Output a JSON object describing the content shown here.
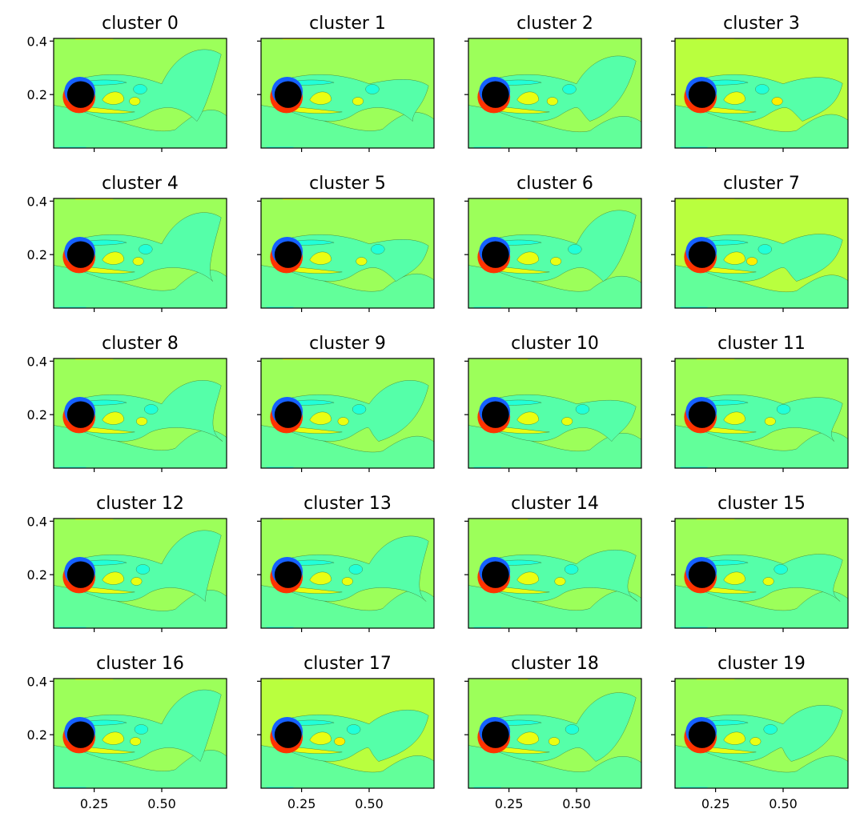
{
  "chart_data": {
    "type": "contourf",
    "layout": {
      "rows": 5,
      "cols": 4
    },
    "shared_x_ticks": [
      0.25,
      0.5
    ],
    "shared_x_tick_labels": [
      "0.25",
      "0.50"
    ],
    "shared_y_ticks": [
      0.2,
      0.4
    ],
    "shared_y_tick_labels": [
      "0.2",
      "0.4"
    ],
    "xlim": [
      0.1,
      0.74
    ],
    "ylim": [
      0.0,
      0.41
    ],
    "cylinder": {
      "cx": 0.2,
      "cy": 0.2,
      "r": 0.05,
      "color": "#000000"
    },
    "colormap": "jet",
    "colors": {
      "freestream": "#9cff5a",
      "freestream_warm": "#b9ff3e",
      "lower_field": "#62ff9a",
      "wake_mid": "#55ffa9",
      "vortex_cyan": "#22ffd9",
      "vortex_yellow": "#eaff12",
      "vortex_core_yellow": "#ffee00",
      "hot_edge": "#ff3300",
      "cold_edge": "#1560ff"
    },
    "panels": [
      {
        "title": "cluster 0",
        "warm": false,
        "phase": 0.0
      },
      {
        "title": "cluster 1",
        "warm": false,
        "phase": 0.45
      },
      {
        "title": "cluster 2",
        "warm": false,
        "phase": 0.85
      },
      {
        "title": "cluster 3",
        "warm": true,
        "phase": 0.6
      },
      {
        "title": "cluster 4",
        "warm": false,
        "phase": 0.1
      },
      {
        "title": "cluster 5",
        "warm": false,
        "phase": 0.55
      },
      {
        "title": "cluster 6",
        "warm": false,
        "phase": 0.95
      },
      {
        "title": "cluster 7",
        "warm": true,
        "phase": 0.65
      },
      {
        "title": "cluster 8",
        "warm": false,
        "phase": 0.2
      },
      {
        "title": "cluster 9",
        "warm": false,
        "phase": 0.8
      },
      {
        "title": "cluster 10",
        "warm": false,
        "phase": 0.5
      },
      {
        "title": "cluster 11",
        "warm": false,
        "phase": 0.4
      },
      {
        "title": "cluster 12",
        "warm": false,
        "phase": 0.05
      },
      {
        "title": "cluster 13",
        "warm": false,
        "phase": 0.15
      },
      {
        "title": "cluster 14",
        "warm": false,
        "phase": 0.3
      },
      {
        "title": "cluster 15",
        "warm": false,
        "phase": 0.35
      },
      {
        "title": "cluster 16",
        "warm": false,
        "phase": 0.02
      },
      {
        "title": "cluster 17",
        "warm": true,
        "phase": 0.7
      },
      {
        "title": "cluster 18",
        "warm": false,
        "phase": 0.9
      },
      {
        "title": "cluster 19",
        "warm": false,
        "phase": 0.75
      }
    ]
  }
}
